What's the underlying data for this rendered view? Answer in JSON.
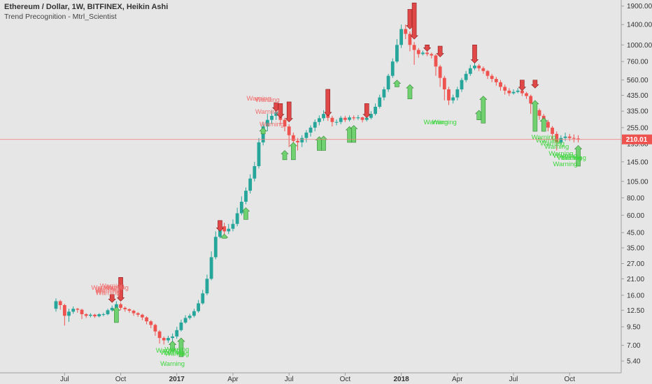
{
  "header": {
    "title": "Ethereum / Dollar, 1W, BITFINEX, Heikin Ashi",
    "indicator": "Trend Precognition - Mtrl_Scientist"
  },
  "colors": {
    "up": "#26a69a",
    "down": "#ef5350",
    "bull_signal": "#6fd16f",
    "bear_signal": "#e04848",
    "warn_up": "#f26d6d",
    "warn_dn": "#3dd63d",
    "current_line": "#f08080",
    "badge": "#ef5350",
    "axis": "#9e9e9e"
  },
  "chart_data": {
    "type": "candlestick",
    "scale": "log",
    "ylim": [
      4.6,
      2100
    ],
    "y_ticks": [
      "1900.00",
      "1400.00",
      "1000.00",
      "760.00",
      "560.00",
      "435.00",
      "335.00",
      "255.00",
      "195.00",
      "145.00",
      "105.00",
      "80.00",
      "60.00",
      "45.00",
      "35.00",
      "27.00",
      "21.00",
      "16.00",
      "12.50",
      "9.50",
      "7.00",
      "5.40"
    ],
    "x_labels": [
      {
        "label": "Jul",
        "week": 2,
        "bold": false
      },
      {
        "label": "Oct",
        "week": 15,
        "bold": false
      },
      {
        "label": "2017",
        "week": 28,
        "bold": true
      },
      {
        "label": "Apr",
        "week": 41,
        "bold": false
      },
      {
        "label": "Jul",
        "week": 54,
        "bold": false
      },
      {
        "label": "Oct",
        "week": 67,
        "bold": false
      },
      {
        "label": "2018",
        "week": 80,
        "bold": true
      },
      {
        "label": "Apr",
        "week": 93,
        "bold": false
      },
      {
        "label": "Jul",
        "week": 106,
        "bold": false
      },
      {
        "label": "Oct",
        "week": 119,
        "bold": false
      }
    ],
    "current_price": "210.01",
    "current_value": 210.01,
    "candles": [
      [
        0,
        12.8,
        14.5,
        15.2,
        12.2
      ],
      [
        1,
        14.5,
        13.6,
        14.8,
        12.6
      ],
      [
        2,
        13.6,
        11.4,
        13.9,
        9.7
      ],
      [
        3,
        11.4,
        12.2,
        12.8,
        10.3
      ],
      [
        4,
        12.2,
        12.8,
        13.3,
        11.8
      ],
      [
        5,
        12.8,
        12.6,
        13.0,
        12.0
      ],
      [
        6,
        12.6,
        11.7,
        12.8,
        10.8
      ],
      [
        7,
        11.7,
        11.4,
        11.9,
        11.0
      ],
      [
        8,
        11.4,
        11.6,
        11.9,
        11.1
      ],
      [
        9,
        11.6,
        11.3,
        11.8,
        11.0
      ],
      [
        10,
        11.3,
        11.7,
        11.9,
        11.1
      ],
      [
        11,
        11.7,
        11.7,
        12.0,
        11.3
      ],
      [
        12,
        11.7,
        12.5,
        12.8,
        11.5
      ],
      [
        13,
        12.5,
        13.0,
        13.5,
        12.2
      ],
      [
        14,
        13.0,
        13.8,
        14.5,
        12.8
      ],
      [
        15,
        13.8,
        13.0,
        14.2,
        12.5
      ],
      [
        16,
        13.0,
        12.7,
        13.3,
        12.2
      ],
      [
        17,
        12.7,
        12.4,
        12.9,
        12.0
      ],
      [
        18,
        12.4,
        11.9,
        12.6,
        11.4
      ],
      [
        19,
        11.9,
        11.6,
        12.1,
        11.2
      ],
      [
        20,
        11.6,
        11.1,
        11.8,
        10.6
      ],
      [
        21,
        11.1,
        10.4,
        11.3,
        9.9
      ],
      [
        22,
        10.4,
        9.8,
        10.6,
        9.3
      ],
      [
        23,
        9.8,
        8.8,
        10.0,
        8.2
      ],
      [
        24,
        8.8,
        7.9,
        9.0,
        7.2
      ],
      [
        25,
        7.9,
        7.6,
        8.1,
        7.1
      ],
      [
        26,
        7.6,
        7.9,
        8.2,
        7.3
      ],
      [
        27,
        7.9,
        8.1,
        8.5,
        7.5
      ],
      [
        28,
        8.1,
        9.0,
        9.5,
        7.8
      ],
      [
        29,
        9.0,
        10.2,
        10.7,
        8.8
      ],
      [
        30,
        10.2,
        11.0,
        11.5,
        10.0
      ],
      [
        31,
        11.0,
        11.4,
        11.8,
        10.7
      ],
      [
        32,
        11.4,
        12.3,
        12.8,
        11.1
      ],
      [
        33,
        12.3,
        14.0,
        14.8,
        12.0
      ],
      [
        34,
        14.0,
        16.5,
        17.5,
        13.7
      ],
      [
        35,
        16.5,
        21.0,
        22.5,
        16.0
      ],
      [
        36,
        21.0,
        30.0,
        33.0,
        20.5
      ],
      [
        37,
        30.0,
        42.0,
        46.0,
        29.0
      ],
      [
        38,
        42.0,
        50.0,
        55.0,
        41.0
      ],
      [
        39,
        50.0,
        46.0,
        53.0,
        43.0
      ],
      [
        40,
        46.0,
        48.0,
        52.0,
        44.0
      ],
      [
        41,
        48.0,
        52.0,
        56.0,
        46.0
      ],
      [
        42,
        52.0,
        62.0,
        68.0,
        50.0
      ],
      [
        43,
        62.0,
        75.0,
        82.0,
        60.0
      ],
      [
        44,
        75.0,
        90.0,
        95.0,
        72.0
      ],
      [
        45,
        90.0,
        110.0,
        118.0,
        86.0
      ],
      [
        46,
        110.0,
        135.0,
        145.0,
        105.0
      ],
      [
        47,
        135.0,
        200.0,
        215.0,
        130.0
      ],
      [
        48,
        200.0,
        260.0,
        280.0,
        190.0
      ],
      [
        49,
        260.0,
        290.0,
        320.0,
        240.0
      ],
      [
        50,
        290.0,
        310.0,
        340.0,
        270.0
      ],
      [
        51,
        310.0,
        330.0,
        360.0,
        290.0
      ],
      [
        52,
        330.0,
        290.0,
        345.0,
        270.0
      ],
      [
        53,
        290.0,
        260.0,
        300.0,
        240.0
      ],
      [
        54,
        260.0,
        225.0,
        270.0,
        185.0
      ],
      [
        55,
        225.0,
        205.0,
        235.0,
        160.0
      ],
      [
        56,
        205.0,
        200.0,
        215.0,
        175.0
      ],
      [
        57,
        200.0,
        215.0,
        225.0,
        185.0
      ],
      [
        58,
        215.0,
        235.0,
        245.0,
        200.0
      ],
      [
        59,
        235.0,
        255.0,
        265.0,
        220.0
      ],
      [
        60,
        255.0,
        280.0,
        292.0,
        240.0
      ],
      [
        61,
        280.0,
        298.0,
        312.0,
        265.0
      ],
      [
        62,
        298.0,
        320.0,
        340.0,
        285.0
      ],
      [
        63,
        320.0,
        300.0,
        330.0,
        285.0
      ],
      [
        64,
        300.0,
        280.0,
        310.0,
        260.0
      ],
      [
        65,
        280.0,
        280.0,
        292.0,
        265.0
      ],
      [
        66,
        280.0,
        300.0,
        310.0,
        270.0
      ],
      [
        67,
        300.0,
        290.0,
        310.0,
        280.0
      ],
      [
        68,
        290.0,
        302.0,
        312.0,
        282.0
      ],
      [
        69,
        302.0,
        298.0,
        312.0,
        288.0
      ],
      [
        70,
        298.0,
        302.0,
        314.0,
        290.0
      ],
      [
        71,
        302.0,
        290.0,
        306.0,
        278.0
      ],
      [
        72,
        290.0,
        300.0,
        310.0,
        282.0
      ],
      [
        73,
        300.0,
        320.0,
        335.0,
        292.0
      ],
      [
        74,
        320.0,
        360.0,
        380.0,
        312.0
      ],
      [
        75,
        360.0,
        420.0,
        440.0,
        350.0
      ],
      [
        76,
        420.0,
        480.0,
        500.0,
        400.0
      ],
      [
        77,
        480.0,
        600.0,
        620.0,
        460.0
      ],
      [
        78,
        600.0,
        760.0,
        800.0,
        580.0
      ],
      [
        79,
        760.0,
        1000.0,
        1100.0,
        740.0
      ],
      [
        80,
        1000.0,
        1300.0,
        1400.0,
        950.0
      ],
      [
        81,
        1300.0,
        1200.0,
        1400.0,
        1100.0
      ],
      [
        82,
        1200.0,
        1000.0,
        1250.0,
        900.0
      ],
      [
        83,
        1000.0,
        920.0,
        1050.0,
        720.0
      ],
      [
        84,
        920.0,
        860.0,
        950.0,
        810.0
      ],
      [
        85,
        860.0,
        880.0,
        910.0,
        840.0
      ],
      [
        86,
        880.0,
        860.0,
        900.0,
        830.0
      ],
      [
        87,
        860.0,
        840.0,
        880.0,
        800.0
      ],
      [
        88,
        840.0,
        700.0,
        860.0,
        600.0
      ],
      [
        89,
        700.0,
        580.0,
        720.0,
        500.0
      ],
      [
        90,
        580.0,
        480.0,
        600.0,
        400.0
      ],
      [
        91,
        480.0,
        400.0,
        500.0,
        370.0
      ],
      [
        92,
        400.0,
        420.0,
        440.0,
        380.0
      ],
      [
        93,
        420.0,
        480.0,
        500.0,
        400.0
      ],
      [
        94,
        480.0,
        560.0,
        580.0,
        460.0
      ],
      [
        95,
        560.0,
        620.0,
        650.0,
        540.0
      ],
      [
        96,
        620.0,
        680.0,
        720.0,
        600.0
      ],
      [
        97,
        680.0,
        710.0,
        740.0,
        660.0
      ],
      [
        98,
        710.0,
        680.0,
        730.0,
        650.0
      ],
      [
        99,
        680.0,
        650.0,
        700.0,
        620.0
      ],
      [
        100,
        650.0,
        600.0,
        660.0,
        570.0
      ],
      [
        101,
        600.0,
        570.0,
        620.0,
        540.0
      ],
      [
        102,
        570.0,
        540.0,
        590.0,
        510.0
      ],
      [
        103,
        540.0,
        500.0,
        560.0,
        470.0
      ],
      [
        104,
        500.0,
        470.0,
        520.0,
        440.0
      ],
      [
        105,
        470.0,
        450.0,
        490.0,
        430.0
      ],
      [
        106,
        450.0,
        460.0,
        480.0,
        440.0
      ],
      [
        107,
        460.0,
        470.0,
        490.0,
        450.0
      ],
      [
        108,
        470.0,
        450.0,
        480.0,
        430.0
      ],
      [
        109,
        450.0,
        430.0,
        460.0,
        410.0
      ],
      [
        110,
        430.0,
        380.0,
        440.0,
        320.0
      ],
      [
        111,
        380.0,
        340.0,
        390.0,
        300.0
      ],
      [
        112,
        340.0,
        310.0,
        350.0,
        290.0
      ],
      [
        113,
        310.0,
        280.0,
        320.0,
        265.0
      ],
      [
        114,
        280.0,
        255.0,
        290.0,
        240.0
      ],
      [
        115,
        255.0,
        230.0,
        262.0,
        210.0
      ],
      [
        116,
        230.0,
        200.0,
        240.0,
        175.0
      ],
      [
        117,
        200.0,
        215.0,
        225.0,
        195.0
      ],
      [
        118,
        215.0,
        220.0,
        235.0,
        205.0
      ],
      [
        119,
        220.0,
        215.0,
        230.0,
        205.0
      ],
      [
        120,
        215.0,
        213.0,
        228.0,
        200.0
      ],
      [
        121,
        213.0,
        210.0,
        225.0,
        200.0
      ]
    ],
    "bull_signals": [
      [
        14,
        10.2,
        13.2
      ],
      [
        27,
        6.4,
        7.5
      ],
      [
        29,
        5.8,
        7.9
      ],
      [
        39,
        41.0,
        44.0
      ],
      [
        44,
        56.0,
        68.0
      ],
      [
        48,
        230.0,
        255.0
      ],
      [
        53,
        150.0,
        175.0
      ],
      [
        55,
        150.0,
        200.0
      ],
      [
        61,
        175.0,
        220.0
      ],
      [
        62,
        175.0,
        222.0
      ],
      [
        68,
        200.0,
        260.0
      ],
      [
        69,
        200.0,
        265.0
      ],
      [
        79,
        500.0,
        560.0
      ],
      [
        82,
        410.0,
        520.0
      ],
      [
        98,
        290.0,
        340.0
      ],
      [
        99,
        275.0,
        430.0
      ],
      [
        111,
        240.0,
        400.0
      ],
      [
        113,
        240.0,
        300.0
      ],
      [
        121,
        135.0,
        190.0
      ]
    ],
    "bear_signals": [
      [
        13,
        14.2,
        16.2
      ],
      [
        15,
        14.5,
        21.5
      ],
      [
        38,
        46.0,
        55.0
      ],
      [
        51,
        335.0,
        385.0
      ],
      [
        52,
        300.0,
        380.0
      ],
      [
        54,
        280.0,
        390.0
      ],
      [
        63,
        310.0,
        480.0
      ],
      [
        72,
        300.0,
        380.0
      ],
      [
        82,
        1300.0,
        1800.0
      ],
      [
        83,
        1100.0,
        2000.0
      ],
      [
        86,
        900.0,
        1000.0
      ],
      [
        89,
        820.0,
        980.0
      ],
      [
        97,
        740.0,
        1000.0
      ],
      [
        108,
        470.0,
        560.0
      ],
      [
        111,
        490.0,
        560.0
      ]
    ],
    "warnings_up": [
      [
        11,
        17.5
      ],
      [
        12,
        17.0
      ],
      [
        12,
        16.5
      ],
      [
        12,
        16.1
      ],
      [
        13,
        18.0
      ],
      [
        14,
        17.5
      ],
      [
        47,
        400.0
      ],
      [
        49,
        390.0
      ],
      [
        49,
        320.0
      ],
      [
        50,
        260.0
      ]
    ],
    "warnings_dn": [
      [
        26,
        6.2
      ],
      [
        27,
        6.0
      ],
      [
        28,
        6.3
      ],
      [
        28,
        5.9
      ],
      [
        27,
        5.0
      ],
      [
        88,
        270.0
      ],
      [
        90,
        270.0
      ],
      [
        113,
        210.0
      ],
      [
        114,
        200.0
      ],
      [
        115,
        190.0
      ],
      [
        116,
        180.0
      ],
      [
        117,
        160.0
      ],
      [
        118,
        155.0
      ],
      [
        119,
        150.0
      ],
      [
        118,
        135.0
      ],
      [
        120,
        150.0
      ]
    ],
    "warning_label": "Warning"
  }
}
